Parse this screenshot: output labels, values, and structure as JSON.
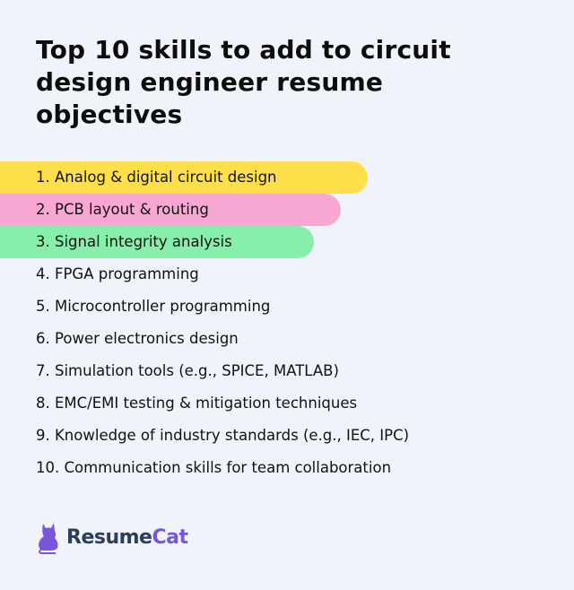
{
  "title": "Top 10 skills to add to circuit design engineer resume objectives",
  "skills": [
    {
      "label": "1. Analog & digital circuit design",
      "highlight": "#ffe04a"
    },
    {
      "label": "2. PCB layout & routing",
      "highlight": "#f9a8d4"
    },
    {
      "label": "3. Signal integrity analysis",
      "highlight": "#86efac"
    },
    {
      "label": "4. FPGA programming"
    },
    {
      "label": "5. Microcontroller programming"
    },
    {
      "label": "6. Power electronics design"
    },
    {
      "label": "7. Simulation tools (e.g., SPICE, MATLAB)"
    },
    {
      "label": "8. EMC/EMI testing & mitigation techniques"
    },
    {
      "label": "9. Knowledge of industry standards (e.g., IEC, IPC)"
    },
    {
      "label": "10. Communication skills for team collaboration"
    }
  ],
  "logo": {
    "part1": "Resume",
    "part2": "Cat",
    "icon": "cat-icon",
    "color": "#7b55d9"
  }
}
